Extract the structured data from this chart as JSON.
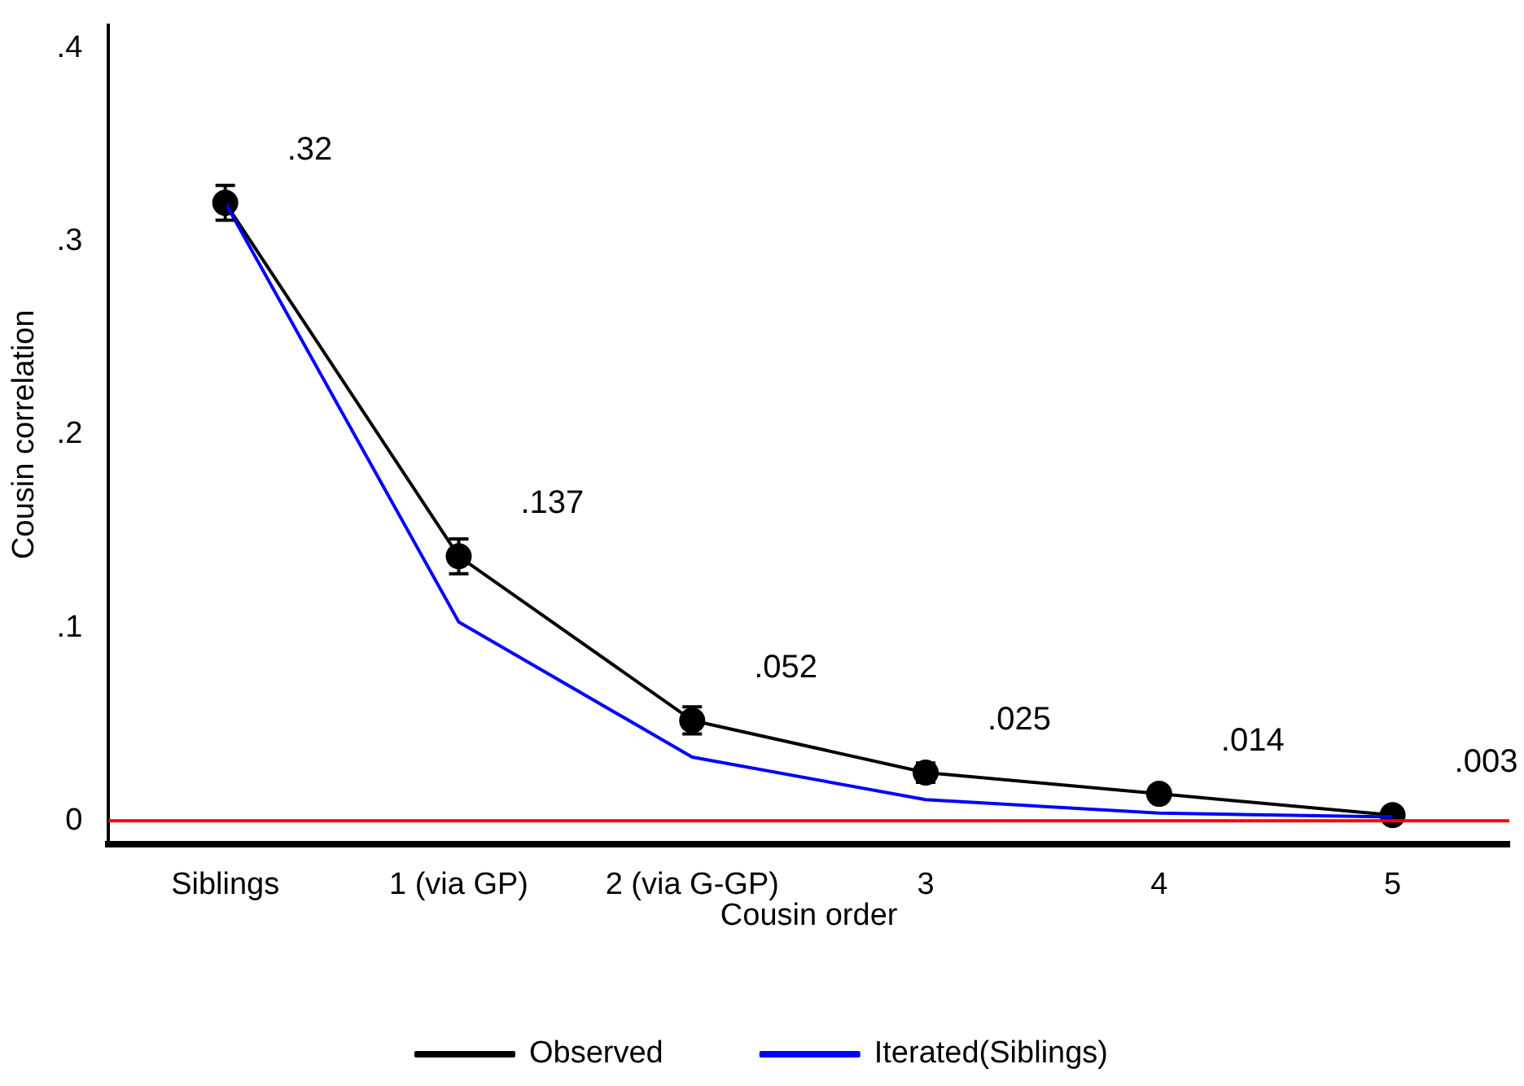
{
  "chart_data": {
    "type": "line",
    "xlabel": "Cousin order",
    "ylabel": "Cousin correlation",
    "categories": [
      "Siblings",
      "1 (via GP)",
      "2 (via G-GP)",
      "3",
      "4",
      "5"
    ],
    "series": [
      {
        "name": "Observed",
        "color": "#000000",
        "marker": "circle",
        "values": [
          0.32,
          0.137,
          0.052,
          0.025,
          0.014,
          0.003
        ],
        "errors": [
          0.009,
          0.009,
          0.007,
          0.005,
          null,
          null
        ],
        "value_labels": [
          ".32",
          ".137",
          ".052",
          ".025",
          ".014",
          ".003"
        ]
      },
      {
        "name": "Iterated(Siblings)",
        "color": "#0000ff",
        "marker": "none",
        "values": [
          0.32,
          0.103,
          0.033,
          0.011,
          0.004,
          0.002
        ]
      }
    ],
    "ylim": [
      -0.012,
      0.412
    ],
    "yticks": [
      0,
      {
        "value": 0.1,
        "label": ".1"
      },
      {
        "value": 0.2,
        "label": ".2"
      },
      {
        "value": 0.3,
        "label": ".3"
      },
      {
        "value": 0.4,
        "label": ".4"
      }
    ],
    "ref_lines": [
      {
        "axis": "y",
        "value": 0,
        "color": "#ff0000"
      }
    ],
    "grid": false,
    "legend": "bottom"
  }
}
